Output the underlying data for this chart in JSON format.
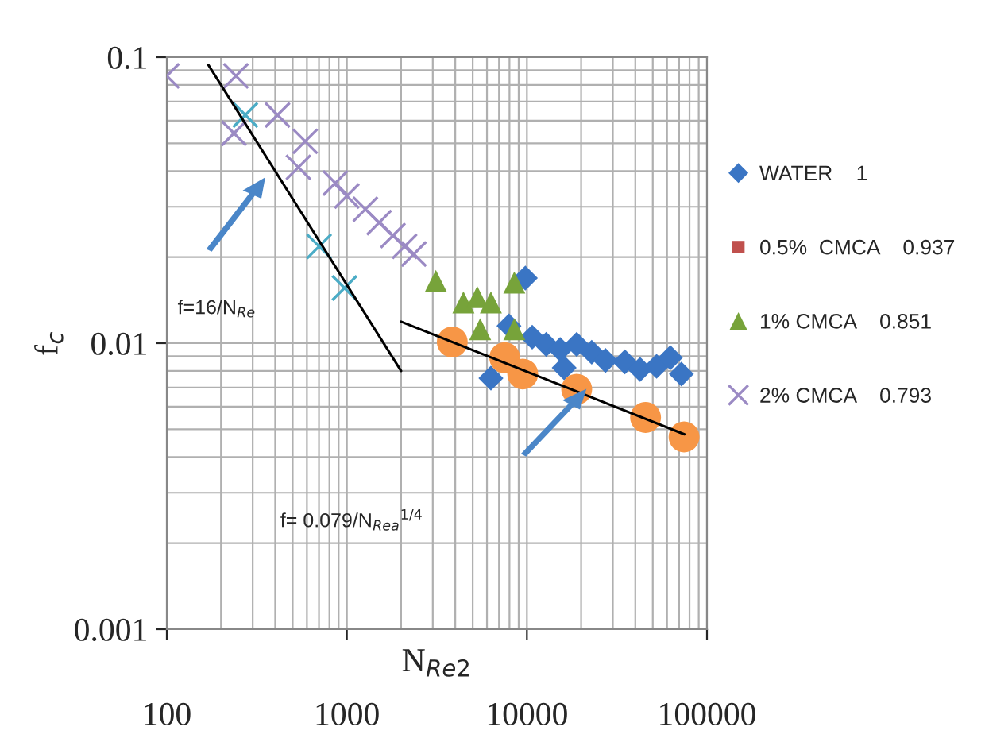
{
  "chart_data": {
    "type": "scatter",
    "xlabel": "N$_{Re2}$",
    "ylabel": "f$_{c}$",
    "log": "xy",
    "grid": true,
    "legend": "right",
    "xlim": [
      100,
      100000
    ],
    "ylim": [
      0.001,
      0.1
    ],
    "xticks": [
      100,
      1000,
      10000,
      100000
    ],
    "yticks": [
      0.001,
      0.01,
      0.1
    ],
    "series": [
      {
        "name": "WATER    1",
        "marker": "diamond",
        "color": "#3a75c4",
        "x": [
          9800,
          7950,
          6310,
          7530,
          10700,
          12800,
          15300,
          16100,
          18900,
          22900,
          27300,
          35000,
          42500,
          52500,
          62600,
          72100
        ],
        "values": [
          0.0169,
          0.0115,
          0.00755,
          null,
          0.0105,
          0.0099,
          0.0095,
          0.0082,
          0.0099,
          0.0093,
          0.0087,
          0.0086,
          0.0081,
          0.0083,
          0.0089,
          0.0078
        ]
      },
      {
        "name": "0.5%  CMCA    0.937",
        "marker": "square",
        "color": "#c0504d"
      },
      {
        "name": "1% CMCA    0.851",
        "marker": "triangle",
        "color": "#77a33a",
        "x": [
          3120,
          4440,
          5300,
          6310,
          8510,
          5500,
          8510
        ],
        "values": [
          0.0165,
          0.0139,
          0.0145,
          0.0139,
          0.0163,
          0.0112,
          0.0112
        ]
      },
      {
        "name": "2% CMCA    0.793",
        "marker": "cross",
        "color": "#9b8ac4",
        "x": [
          100,
          242,
          236,
          412,
          587,
          538,
          863,
          1000,
          1267,
          1511,
          1803,
          2093,
          2356
        ],
        "values": [
          0.086,
          0.086,
          0.0542,
          0.0628,
          0.0508,
          0.0412,
          0.0363,
          0.0327,
          0.0294,
          0.0264,
          0.0238,
          0.0218,
          0.0205
        ]
      },
      {
        "marker": "cross",
        "color": "#4bacc6",
        "x": [
          273,
          701,
          970
        ],
        "values": [
          0.0628,
          0.0218,
          0.0156
        ]
      },
      {
        "marker": "circle",
        "color": "#f79646",
        "x": [
          3850,
          7530,
          9480,
          18900,
          45600,
          74600
        ],
        "values": [
          0.0101,
          0.0089,
          0.0078,
          0.0069,
          0.0055,
          0.0047
        ]
      },
      {
        "type": "line",
        "marker": "none",
        "line_style": "solid",
        "color": "#000000",
        "x": [
          170,
          2000
        ],
        "values": [
          0.094,
          0.008
        ]
      },
      {
        "type": "line",
        "marker": "none",
        "line_style": "solid",
        "color": "#000000",
        "x": [
          2000,
          75000
        ],
        "values": [
          0.0119,
          0.0048
        ]
      }
    ],
    "annotations": [
      "f=16/N$_{Re}$",
      "f= 0.079/N$_{Rea}$$^{1/4}$"
    ]
  }
}
